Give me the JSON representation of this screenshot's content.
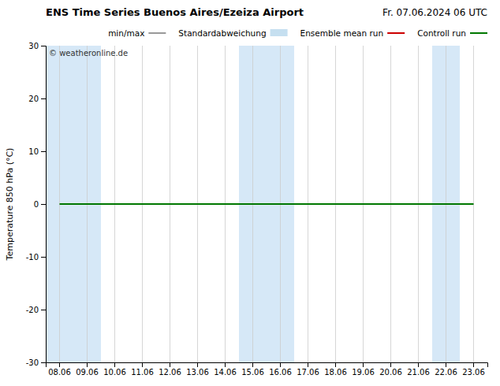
{
  "chart_data": {
    "type": "line",
    "title": "ENS Time Series Buenos Aires/Ezeiza Airport",
    "subtitle": "Fr. 07.06.2024 06 UTC",
    "y_label": "Temperature 850 hPa (°C)",
    "annotations": [
      "© weatheronline.de"
    ],
    "categories": [
      "08.06",
      "09.06",
      "10.06",
      "11.06",
      "12.06",
      "13.06",
      "14.06",
      "15.06",
      "16.06",
      "17.06",
      "18.06",
      "19.06",
      "20.06",
      "21.06",
      "22.06",
      "23.06"
    ],
    "series": [
      {
        "name": "min/max",
        "color": "#999999",
        "type": "line",
        "values": [
          null,
          null,
          null,
          null,
          null,
          null,
          null,
          null,
          null,
          null,
          null,
          null,
          null,
          null,
          null,
          null
        ]
      },
      {
        "name": "Standardabweichung",
        "color": "#c5dff0",
        "type": "area",
        "values": [
          null,
          null,
          null,
          null,
          null,
          null,
          null,
          null,
          null,
          null,
          null,
          null,
          null,
          null,
          null,
          null
        ]
      },
      {
        "name": "Ensemble mean run",
        "color": "#cc0000",
        "type": "line",
        "values": [
          null,
          null,
          null,
          null,
          null,
          null,
          null,
          null,
          null,
          null,
          null,
          null,
          null,
          null,
          null,
          null
        ]
      },
      {
        "name": "Controll run",
        "color": "#007700",
        "type": "line",
        "values": [
          0,
          0,
          0,
          0,
          0,
          0,
          0,
          0,
          0,
          0,
          0,
          0,
          0,
          0,
          0,
          0
        ]
      }
    ],
    "shaded_bands": [
      {
        "x_start": 0,
        "x_end": 2,
        "color": "#d6e8f7"
      },
      {
        "x_start": 7,
        "x_end": 9,
        "color": "#d6e8f7"
      },
      {
        "x_start": 14,
        "x_end": 15,
        "color": "#d6e8f7"
      }
    ],
    "ylim": [
      -30,
      30
    ],
    "yticks": [
      -30,
      -20,
      -10,
      0,
      10,
      20,
      30
    ],
    "grid": "x",
    "legend": "top"
  }
}
